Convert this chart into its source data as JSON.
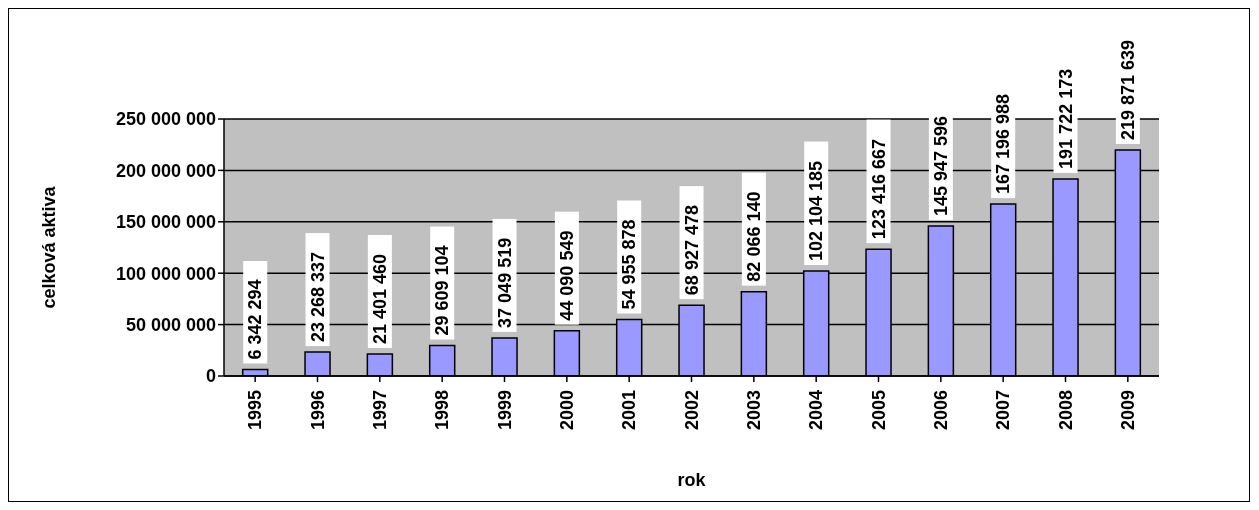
{
  "chart_data": {
    "type": "bar",
    "xlabel": "rok",
    "ylabel": "celková aktiva",
    "categories": [
      "1995",
      "1996",
      "1997",
      "1998",
      "1999",
      "2000",
      "2001",
      "2002",
      "2003",
      "2004",
      "2005",
      "2006",
      "2007",
      "2008",
      "2009"
    ],
    "values": [
      6342294,
      23268337,
      21401460,
      29609104,
      37049519,
      44090549,
      54955878,
      68927478,
      82066140,
      102104185,
      123416667,
      145947596,
      167196988,
      191722173,
      219871639
    ],
    "value_labels": [
      "6 342 294",
      "23 268 337",
      "21 401 460",
      "29 609 104",
      "37 049 519",
      "44 090 549",
      "54 955 878",
      "68 927 478",
      "82 066 140",
      "102 104 185",
      "123 416 667",
      "145 947 596",
      "167 196 988",
      "191 722 173",
      "219 871 639"
    ],
    "color": "#9999ff",
    "ylim": [
      0,
      250000000
    ],
    "yticks": [
      {
        "value": 0,
        "label": "0"
      },
      {
        "value": 50000000,
        "label": "50 000 000"
      },
      {
        "value": 100000000,
        "label": "100 000 000"
      },
      {
        "value": 150000000,
        "label": "150 000 000"
      },
      {
        "value": 200000000,
        "label": "200 000 000"
      },
      {
        "value": 250000000,
        "label": "250 000 000"
      }
    ],
    "grid": "y"
  }
}
